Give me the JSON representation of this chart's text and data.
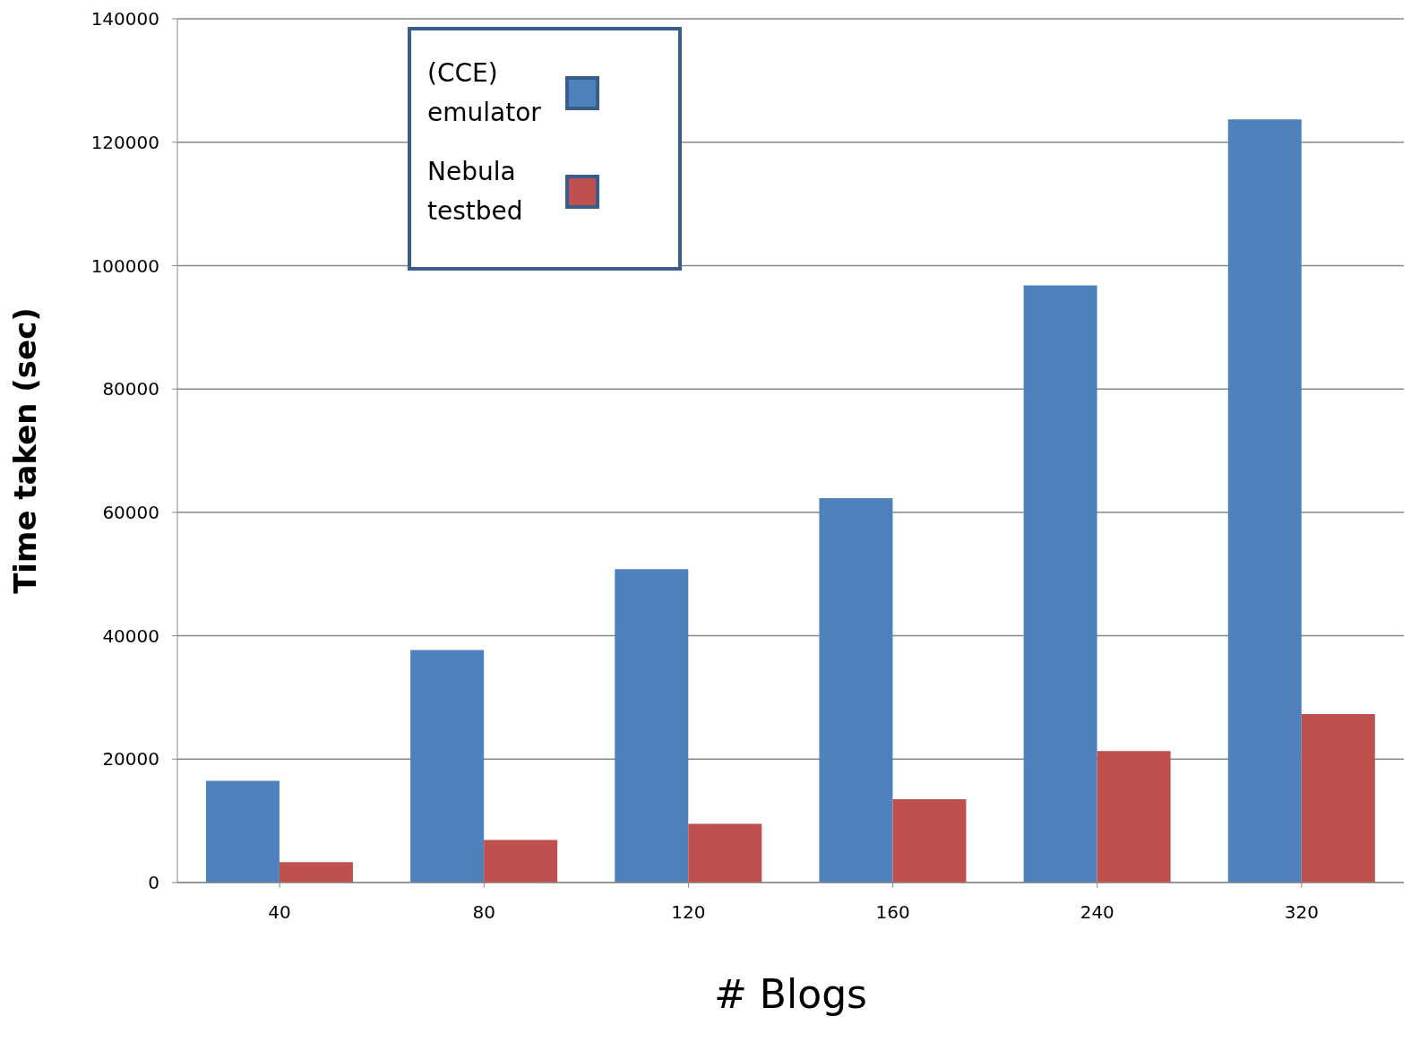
{
  "chart_data": {
    "type": "bar",
    "xlabel": "# Blogs",
    "ylabel": "Time taken (sec)",
    "categories": [
      "40",
      "80",
      "120",
      "160",
      "240",
      "320"
    ],
    "series": [
      {
        "name": "(CCE) emulator",
        "color": "#4f81bd",
        "values": [
          16500,
          37700,
          50800,
          62300,
          96800,
          123700
        ]
      },
      {
        "name": "Nebula testbed",
        "color": "#c0504d",
        "values": [
          3300,
          6900,
          9500,
          13500,
          21300,
          27300
        ]
      }
    ],
    "ylim": [
      0,
      140000
    ],
    "yticks": [
      0,
      20000,
      40000,
      60000,
      80000,
      100000,
      120000,
      140000
    ],
    "grid": "y",
    "legend": "top left"
  }
}
